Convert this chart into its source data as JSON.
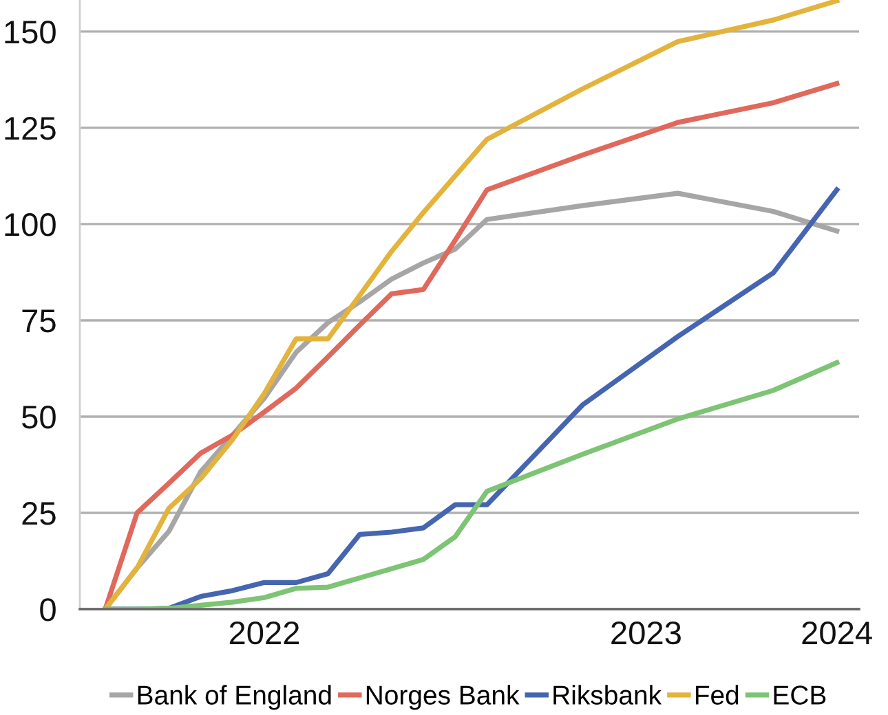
{
  "chart_data": {
    "type": "line",
    "categories": [
      null,
      null,
      null,
      null,
      null,
      "2022",
      null,
      null,
      null,
      null,
      null,
      null,
      null,
      null,
      null,
      null,
      null,
      "2023",
      null,
      null,
      null,
      null,
      null,
      "2024"
    ],
    "ylim": [
      0,
      158.2
    ],
    "yticks": [
      0,
      25,
      50,
      75,
      100,
      125,
      150
    ],
    "grid": "y",
    "legend": "bottom",
    "series": [
      {
        "name": "Bank of England",
        "color": "#a6a6a6",
        "values": [
          0,
          10.7,
          20.2,
          35.7,
          45.2,
          54.8,
          66.7,
          74.4,
          79.8,
          85.7,
          89.9,
          93.5,
          101.2,
          null,
          null,
          104.8,
          null,
          null,
          108,
          null,
          null,
          103.3,
          null,
          98.2
        ]
      },
      {
        "name": "Norges Bank",
        "color": "#e0695c",
        "values": [
          0,
          25,
          32.7,
          40.5,
          45.2,
          51.2,
          57.4,
          65.5,
          73.8,
          81.9,
          83,
          95.8,
          108.9,
          null,
          null,
          117.9,
          null,
          null,
          126.4,
          null,
          null,
          131.5,
          null,
          136.5
        ]
      },
      {
        "name": "Riksbank",
        "color": "#4565b0",
        "values": [
          0,
          0,
          0.2,
          3.3,
          4.8,
          6.9,
          6.9,
          9.2,
          19.4,
          20,
          21.1,
          27.1,
          27.1,
          null,
          null,
          53,
          null,
          null,
          70.8,
          null,
          null,
          87.3,
          null,
          108.9
        ]
      },
      {
        "name": "Fed",
        "color": "#e3b33c",
        "values": [
          0,
          10.7,
          26.2,
          33.9,
          44,
          56,
          70.2,
          70.2,
          81.5,
          92.9,
          103,
          112.5,
          122,
          null,
          null,
          135.1,
          null,
          null,
          147.4,
          null,
          null,
          153,
          null,
          158
        ]
      },
      {
        "name": "ECB",
        "color": "#7dc475",
        "values": [
          0,
          0,
          0.2,
          1,
          1.8,
          3,
          5.4,
          5.7,
          8.1,
          10.5,
          12.9,
          18.8,
          30.6,
          null,
          null,
          40.2,
          null,
          null,
          49.4,
          null,
          null,
          56.8,
          null,
          64
        ]
      }
    ]
  }
}
